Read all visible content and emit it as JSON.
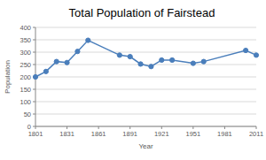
{
  "chart_data": {
    "type": "line",
    "title": "Total Population of Fairstead",
    "x_label": "Year",
    "y_label": "Population",
    "x": [
      1801,
      1811,
      1821,
      1831,
      1841,
      1851,
      1881,
      1891,
      1901,
      1911,
      1921,
      1931,
      1951,
      1961,
      2001,
      2011
    ],
    "series": [
      {
        "name": "Population",
        "color": "#4a7ebb",
        "marker": "circle",
        "values": [
          200,
          222,
          262,
          258,
          303,
          348,
          288,
          282,
          252,
          242,
          268,
          268,
          255,
          262,
          307,
          288
        ]
      }
    ],
    "xlim": [
      1801,
      2011
    ],
    "xticks": [
      1801,
      1831,
      1861,
      1891,
      1921,
      1951,
      1981,
      2011
    ],
    "ylim": [
      0,
      400
    ],
    "yticks": [
      0,
      50,
      100,
      150,
      200,
      250,
      300,
      350,
      400
    ],
    "grid": true
  }
}
